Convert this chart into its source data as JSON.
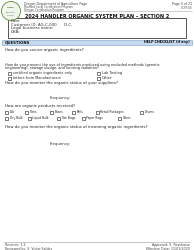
{
  "page_header_left1": "Oregon Department of Agriculture Page",
  "page_header_left2": "Medford Local Certification Program",
  "page_header_left3": "Oregon Certification Program",
  "page_header_right1": "Page 5 of 21",
  "page_header_right2": "OCP.F.60",
  "title": "2024 HANDLER ORGANIC SYSTEM PLAN – SECTION 2",
  "box_lines": [
    "Date:",
    "Customer ID: AG-C-000      D.C.",
    "Legal business name:",
    "DBA:"
  ],
  "blue_bar_left": "QUESTIONS",
  "blue_bar_right": "HELP CHECKLIST (if any)",
  "q1": "How do you source organic ingredients?",
  "q2_header": "How do you prevent the use of ingredients produced using excluded methods (genetic",
  "q2_header2": "engineering), sewage sludge, and ionizing radiation?",
  "q2_cb_row1_left": "certified organic ingredients only",
  "q2_cb_row1_right": "Lab Testing",
  "q2_cb_row2_left": "letters from Manufacturers",
  "q2_cb_row2_right": "Other:",
  "q2b": "How do you monitor the organic status of your suppliers?",
  "freq1_label": "Frequency:",
  "q3": "How are organic products received?",
  "q3_row1": [
    "Tub",
    "Totes",
    "Boxes",
    "Pails",
    "Retail Packages",
    "Drums"
  ],
  "q3_row1_x": [
    5,
    25,
    50,
    72,
    96,
    140
  ],
  "q3_row2": [
    "Dry Bulk",
    "Liquid Bulk",
    "Tote Bags",
    "Paper Bags",
    "Other:"
  ],
  "q3_row2_x": [
    5,
    28,
    57,
    82,
    118
  ],
  "q4": "How do you monitor the organic status of incoming organic ingredients?",
  "freq2_label": "Frequency:",
  "footer_left1": "Revision: 1.2",
  "footer_left2": "Reviewed by: S. Victor Saldes",
  "footer_right1": "Approved: S. Peasharse",
  "footer_right2": "Effective Date: 11/01/2020",
  "bg_color": "#ffffff",
  "blue_bar_color": "#c5d9f1",
  "logo_green": "#3a6e2a"
}
